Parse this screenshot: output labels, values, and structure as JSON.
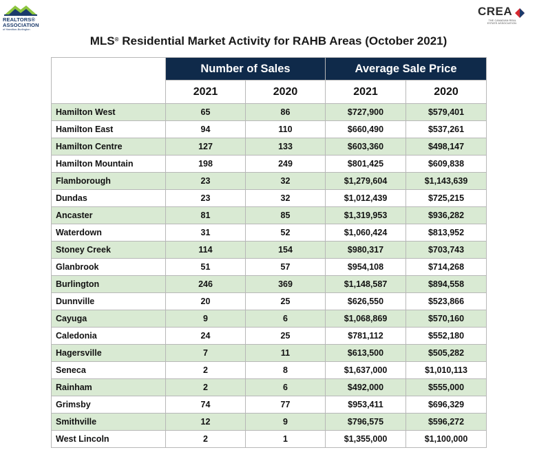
{
  "logos": {
    "left": {
      "line1": "REALTORS®",
      "line2": "ASSOCIATION",
      "line3": "of Hamilton-Burlington"
    },
    "right": {
      "word": "CREA",
      "sub": "THE CANADIAN REAL ESTATE ASSOCIATION"
    }
  },
  "title": {
    "mls": "MLS",
    "reg": "®",
    "rest": " Residential Market Activity for RAHB Areas (October 2021)"
  },
  "table": {
    "groups": {
      "sales": "Number of Sales",
      "price": "Average Sale Price"
    },
    "years": [
      "2021",
      "2020",
      "2021",
      "2020"
    ],
    "rows": [
      {
        "area": "Hamilton West",
        "sales_2021": "65",
        "sales_2020": "86",
        "price_2021": "$727,900",
        "price_2020": "$579,401"
      },
      {
        "area": "Hamilton East",
        "sales_2021": "94",
        "sales_2020": "110",
        "price_2021": "$660,490",
        "price_2020": "$537,261"
      },
      {
        "area": "Hamilton Centre",
        "sales_2021": "127",
        "sales_2020": "133",
        "price_2021": "$603,360",
        "price_2020": "$498,147"
      },
      {
        "area": "Hamilton Mountain",
        "sales_2021": "198",
        "sales_2020": "249",
        "price_2021": "$801,425",
        "price_2020": "$609,838"
      },
      {
        "area": "Flamborough",
        "sales_2021": "23",
        "sales_2020": "32",
        "price_2021": "$1,279,604",
        "price_2020": "$1,143,639"
      },
      {
        "area": "Dundas",
        "sales_2021": "23",
        "sales_2020": "32",
        "price_2021": "$1,012,439",
        "price_2020": "$725,215"
      },
      {
        "area": "Ancaster",
        "sales_2021": "81",
        "sales_2020": "85",
        "price_2021": "$1,319,953",
        "price_2020": "$936,282"
      },
      {
        "area": "Waterdown",
        "sales_2021": "31",
        "sales_2020": "52",
        "price_2021": "$1,060,424",
        "price_2020": "$813,952"
      },
      {
        "area": "Stoney Creek",
        "sales_2021": "114",
        "sales_2020": "154",
        "price_2021": "$980,317",
        "price_2020": "$703,743"
      },
      {
        "area": "Glanbrook",
        "sales_2021": "51",
        "sales_2020": "57",
        "price_2021": "$954,108",
        "price_2020": "$714,268"
      },
      {
        "area": "Burlington",
        "sales_2021": "246",
        "sales_2020": "369",
        "price_2021": "$1,148,587",
        "price_2020": "$894,558"
      },
      {
        "area": "Dunnville",
        "sales_2021": "20",
        "sales_2020": "25",
        "price_2021": "$626,550",
        "price_2020": "$523,866"
      },
      {
        "area": "Cayuga",
        "sales_2021": "9",
        "sales_2020": "6",
        "price_2021": "$1,068,869",
        "price_2020": "$570,160"
      },
      {
        "area": "Caledonia",
        "sales_2021": "24",
        "sales_2020": "25",
        "price_2021": "$781,112",
        "price_2020": "$552,180"
      },
      {
        "area": "Hagersville",
        "sales_2021": "7",
        "sales_2020": "11",
        "price_2021": "$613,500",
        "price_2020": "$505,282"
      },
      {
        "area": "Seneca",
        "sales_2021": "2",
        "sales_2020": "8",
        "price_2021": "$1,637,000",
        "price_2020": "$1,010,113"
      },
      {
        "area": "Rainham",
        "sales_2021": "2",
        "sales_2020": "6",
        "price_2021": "$492,000",
        "price_2020": "$555,000"
      },
      {
        "area": "Grimsby",
        "sales_2021": "74",
        "sales_2020": "77",
        "price_2021": "$953,411",
        "price_2020": "$696,329"
      },
      {
        "area": "Smithville",
        "sales_2021": "12",
        "sales_2020": "9",
        "price_2021": "$796,575",
        "price_2020": "$596,272"
      },
      {
        "area": "West Lincoln",
        "sales_2021": "2",
        "sales_2020": "1",
        "price_2021": "$1,355,000",
        "price_2020": "$1,100,000"
      }
    ]
  },
  "colors": {
    "header_bg": "#0f2a4a",
    "shade_row": "#d9ead3",
    "logo_green": "#8dc63f",
    "logo_blue": "#1b3a6b",
    "crea_red": "#d7282f"
  }
}
